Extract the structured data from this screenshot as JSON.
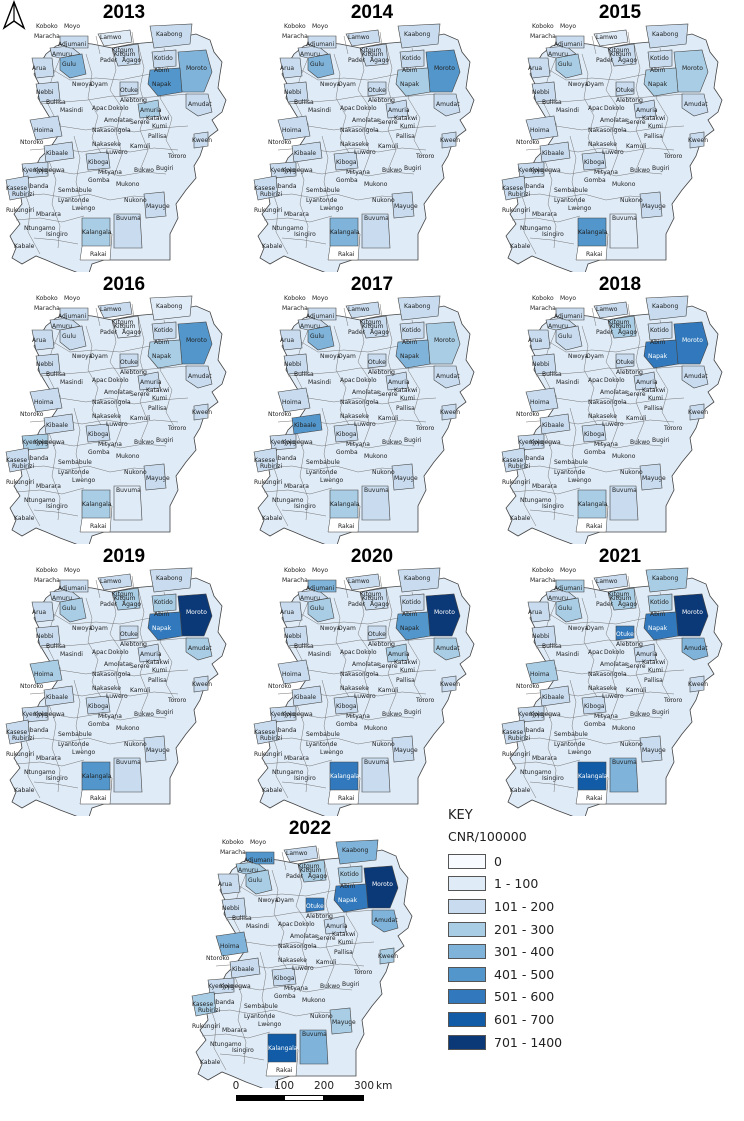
{
  "colors": {
    "classes": [
      "#f7fbff",
      "#dfebf7",
      "#c9dcef",
      "#a9cde4",
      "#7fb3d9",
      "#5296cb",
      "#3179bc",
      "#125ca7",
      "#0b3877"
    ],
    "boundary": "#444444",
    "label": "#222222"
  },
  "legend": {
    "title": "KEY",
    "subtitle": "CNR/100000",
    "classes": [
      {
        "label": "0",
        "color": "#f7fbff"
      },
      {
        "label": "1 - 100",
        "color": "#dfebf7"
      },
      {
        "label": "101 - 200",
        "color": "#c9dcef"
      },
      {
        "label": "201 - 300",
        "color": "#a9cde4"
      },
      {
        "label": "301 - 400",
        "color": "#7fb3d9"
      },
      {
        "label": "401 - 500",
        "color": "#5296cb"
      },
      {
        "label": "501 - 600",
        "color": "#3179bc"
      },
      {
        "label": "601 - 700",
        "color": "#125ca7"
      },
      {
        "label": "701 - 1400",
        "color": "#0b3877"
      }
    ]
  },
  "scalebar": {
    "ticks": [
      "0",
      "100",
      "200",
      "300"
    ],
    "unit": "km"
  },
  "north_arrow": {
    "icon": "north-arrow-icon"
  },
  "district_labels": [
    "Koboko",
    "Moyo",
    "Lamwo",
    "Kaabong",
    "Maracha",
    "Adjumani",
    "Kitgum",
    "Arua",
    "Amuru",
    "Gulu",
    "Pader",
    "Agago",
    "Kotido",
    "Abim",
    "Moroto",
    "Nebbi",
    "Nwoya",
    "Oyam",
    "Otuke",
    "Napak",
    "Amuria",
    "Alebtong",
    "Amudat",
    "Buliisa",
    "Masindi",
    "Apac",
    "Dokolo",
    "Katakwi",
    "Hoima",
    "Amolatar",
    "Serere",
    "Kumi",
    "Nakasongola",
    "Pallisa",
    "Kween",
    "Ntoroko",
    "Kibaale",
    "Nakaseke",
    "Kamuli",
    "Kiboga",
    "Luwero",
    "Tororo",
    "Kyenjojo",
    "Kyegegwa",
    "Mityana",
    "Bugiri",
    "Kasese",
    "Gomba",
    "Mukono",
    "Bukwo",
    "Ibanda",
    "Sembabule",
    "Nukono",
    "Mayuge",
    "Rubirizi",
    "Lyantonde",
    "Lwengo",
    "Rukungiri",
    "Mbarara",
    "Kalangala",
    "Buvuma",
    "Rakai",
    "Ntungamo",
    "Isingiro",
    "Kabale"
  ],
  "maps": [
    {
      "year": "2013",
      "fills": {
        "gulu": 4,
        "napak": 5,
        "kalangala": 3,
        "moroto": 4,
        "kitgum": 2,
        "adjumani": 2,
        "amuru": 2,
        "lamwo": 1,
        "kasese": 2,
        "nebbi": 2,
        "buvuma": 2,
        "kaabong": 2,
        "oyam": 1,
        "amuria": 3,
        "kiboga": 2
      }
    },
    {
      "year": "2014",
      "fills": {
        "gulu": 4,
        "napak": 3,
        "moroto": 5,
        "kalangala": 4,
        "kitgum": 2,
        "amuru": 2,
        "lamwo": 2,
        "buvuma": 2,
        "kaabong": 2,
        "amuria": 2,
        "kasese": 2
      }
    },
    {
      "year": "2015",
      "fills": {
        "gulu": 3,
        "napak": 3,
        "moroto": 3,
        "kalangala": 5,
        "kitgum": 2,
        "kaabong": 2,
        "lamwo": 1,
        "buvuma": 1,
        "amuria": 2
      }
    },
    {
      "year": "2016",
      "fills": {
        "moroto": 5,
        "napak": 3,
        "gulu": 2,
        "kalangala": 3,
        "kyenjojo": 3,
        "kasese": 2,
        "kitgum": 1,
        "kaabong": 1,
        "buvuma": 1
      }
    },
    {
      "year": "2017",
      "fills": {
        "gulu": 4,
        "kibaale": 5,
        "napak": 4,
        "moroto": 3,
        "kalangala": 3,
        "kitgum": 2,
        "kaabong": 2,
        "amuru": 2,
        "buvuma": 2,
        "kasese": 2
      }
    },
    {
      "year": "2018",
      "fills": {
        "napak": 6,
        "moroto": 6,
        "kitgum": 3,
        "kaabong": 2,
        "gulu": 2,
        "kalangala": 3,
        "buvuma": 2
      }
    },
    {
      "year": "2019",
      "fills": {
        "napak": 6,
        "moroto": 8,
        "kalangala": 5,
        "gulu": 3,
        "kitgum": 3,
        "hoima": 3,
        "buvuma": 2,
        "amudat": 3,
        "kaabong": 2,
        "adjumani": 2,
        "amuru": 2,
        "kotido": 3
      }
    },
    {
      "year": "2020",
      "fills": {
        "napak": 5,
        "moroto": 8,
        "kalangala": 6,
        "gulu": 3,
        "adjumani": 4,
        "kitgum": 2,
        "buvuma": 2,
        "amudat": 3,
        "kaabong": 2,
        "amuria": 3
      }
    },
    {
      "year": "2021",
      "fills": {
        "napak": 6,
        "moroto": 8,
        "kalangala": 7,
        "buvuma": 4,
        "gulu": 3,
        "amudat": 4,
        "kitgum": 3,
        "kaabong": 3,
        "adjumani": 3,
        "hoima": 3,
        "kotido": 3,
        "otuke": 6
      }
    },
    {
      "year": "2022",
      "fills": {
        "napak": 6,
        "moroto": 8,
        "kalangala": 7,
        "buvuma": 4,
        "gulu": 3,
        "amudat": 4,
        "kaabong": 4,
        "kitgum": 3,
        "adjumani": 5,
        "hoima": 4,
        "otuke": 6,
        "kotido": 3,
        "amuru": 3,
        "mayuge": 3,
        "arua": 2,
        "nebbi": 2,
        "kasese": 3,
        "kween": 3
      }
    }
  ]
}
